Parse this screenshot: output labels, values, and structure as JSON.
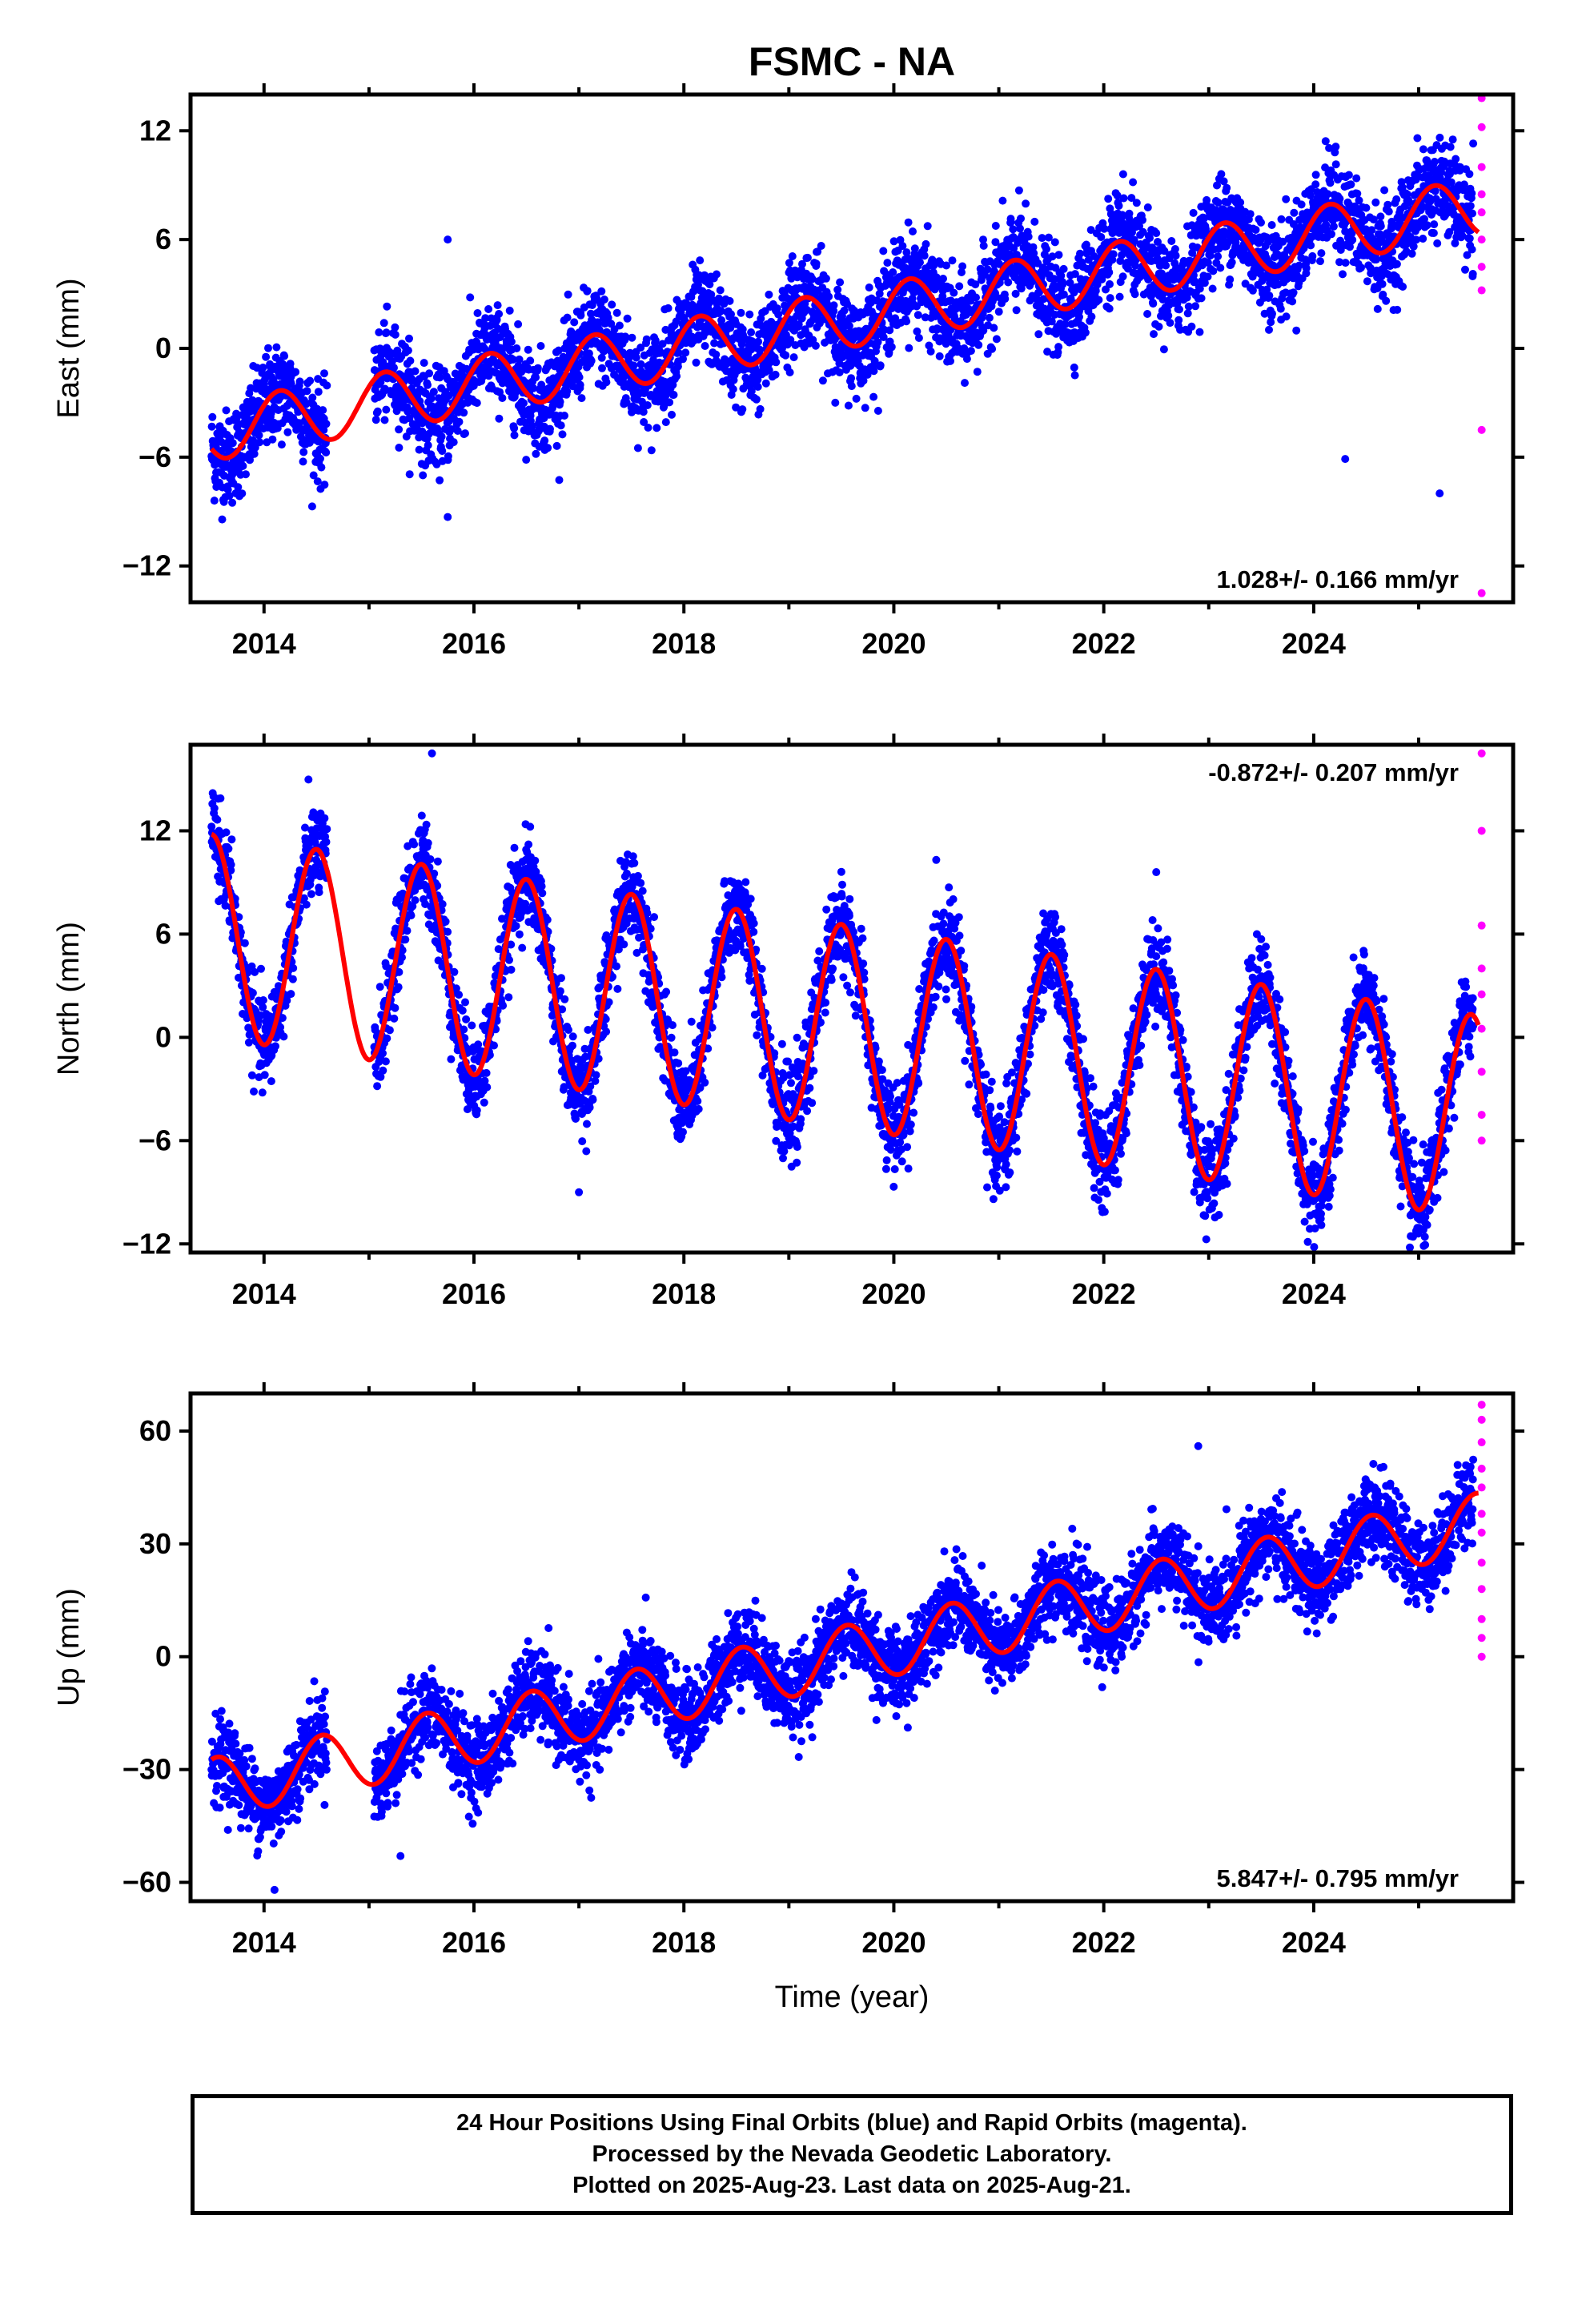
{
  "title": "FSMC - NA",
  "chart_data": [
    {
      "type": "scatter",
      "panel": "east",
      "ylabel": "East (mm)",
      "xlabel": "",
      "ylim": [
        -14,
        14
      ],
      "xlim": [
        2013.3,
        2025.9
      ],
      "yticks": [
        12,
        6,
        0,
        -6,
        -12
      ],
      "xticks": [
        2014,
        2016,
        2018,
        2020,
        2022,
        2024
      ],
      "rate_label": "1.028+/- 0.166 mm/yr",
      "rate_position": "bottom-right",
      "model": {
        "name": "",
        "color": "#ff0000",
        "offset": -4.6,
        "rate": 1.028,
        "amplitude": 1.6,
        "phase_year": 2014.15
      },
      "final_orbits": {
        "color": "#0000ff",
        "start": 2013.5,
        "end": 2025.52,
        "noise": 1.3
      },
      "rapid_orbits": {
        "color": "#ff00ff",
        "x": 2025.6,
        "values": [
          -13.5,
          -4.5,
          3.2,
          4.5,
          6.0,
          7.5,
          8.5,
          10.0,
          12.2,
          13.8
        ]
      },
      "gaps": [
        [
          2014.6,
          2015.05
        ]
      ],
      "outliers": [
        [
          2015.75,
          6.0
        ],
        [
          2015.75,
          -9.3
        ],
        [
          2024.3,
          -6.1
        ],
        [
          2025.2,
          -8.0
        ]
      ]
    },
    {
      "type": "scatter",
      "panel": "north",
      "ylabel": "North (mm)",
      "xlabel": "",
      "ylim": [
        -12.5,
        17
      ],
      "xlim": [
        2013.3,
        2025.9
      ],
      "yticks": [
        12,
        6,
        0,
        -6,
        -12
      ],
      "xticks": [
        2014,
        2016,
        2018,
        2020,
        2022,
        2024
      ],
      "rate_label": "-0.872+/- 0.207 mm/yr",
      "rate_position": "top-right",
      "model": {
        "name": "",
        "color": "#ff0000",
        "offset": 5.9,
        "rate": -0.872,
        "amplitude": 5.9,
        "phase_year": 2013.5
      },
      "final_orbits": {
        "color": "#0000ff",
        "start": 2013.5,
        "end": 2025.52,
        "noise": 1.3
      },
      "rapid_orbits": {
        "color": "#ff00ff",
        "x": 2025.6,
        "values": [
          -6.0,
          -4.5,
          -2.0,
          0.5,
          2.5,
          4.0,
          6.5,
          12.0,
          16.5
        ]
      },
      "gaps": [
        [
          2014.6,
          2015.05
        ]
      ],
      "outliers": [
        [
          2015.6,
          16.5
        ],
        [
          2022.5,
          9.6
        ],
        [
          2017.0,
          -9.0
        ]
      ]
    },
    {
      "type": "scatter",
      "panel": "up",
      "ylabel": "Up (mm)",
      "xlabel": "Time (year)",
      "ylim": [
        -65,
        70
      ],
      "xlim": [
        2013.3,
        2025.9
      ],
      "yticks": [
        60,
        30,
        0,
        -30,
        -60
      ],
      "xticks": [
        2014,
        2016,
        2018,
        2020,
        2022,
        2024
      ],
      "rate_label": "5.847+/- 0.795 mm/yr",
      "rate_position": "bottom-right",
      "model": {
        "name": "",
        "color": "#ff0000",
        "offset": -35,
        "rate": 5.847,
        "amplitude": 8.0,
        "phase_year": 2013.55
      },
      "final_orbits": {
        "color": "#0000ff",
        "start": 2013.5,
        "end": 2025.52,
        "noise": 5.5
      },
      "rapid_orbits": {
        "color": "#ff00ff",
        "x": 2025.6,
        "values": [
          0,
          5,
          10,
          18,
          25,
          33,
          38,
          45,
          50,
          57,
          63,
          67
        ]
      },
      "gaps": [
        [
          2014.6,
          2015.05
        ]
      ],
      "outliers": [
        [
          2022.9,
          56
        ],
        [
          2015.3,
          -53
        ],
        [
          2014.1,
          -62
        ]
      ]
    }
  ],
  "caption": {
    "line1": "24 Hour Positions Using Final Orbits (blue) and Rapid Orbits (magenta).",
    "line2": "Processed by the Nevada Geodetic Laboratory.",
    "line3": "Plotted on 2025-Aug-23. Last data on 2025-Aug-21."
  }
}
